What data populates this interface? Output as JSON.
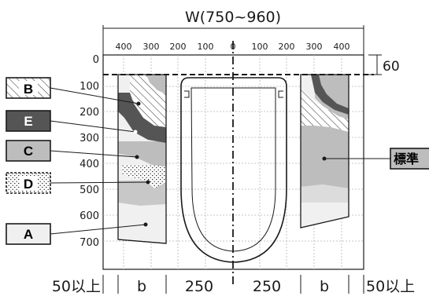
{
  "diagram": {
    "width_label": "W(750~960)",
    "top_ticks": [
      "400",
      "300",
      "200",
      "100",
      "0",
      "100",
      "200",
      "300",
      "400"
    ],
    "left_ticks": [
      "0",
      "100",
      "200",
      "300",
      "400",
      "500",
      "600",
      "700"
    ],
    "offset_label": "60",
    "bottom_labels": [
      "50以上",
      "b",
      "250",
      "250",
      "b",
      "50以上"
    ],
    "zone_labels": {
      "B": "B",
      "E": "E",
      "C": "C",
      "D": "D",
      "A": "A",
      "standard": "標準"
    },
    "colors": {
      "outline": "#1a1a1a",
      "grid": "#b5b5b5",
      "zone_A": "#f0f0f0",
      "zone_C": "#bdbdbd",
      "zone_E": "#555555",
      "zone_B_hatch": "#4a4a4a",
      "zone_D_dots": "#222222"
    }
  }
}
